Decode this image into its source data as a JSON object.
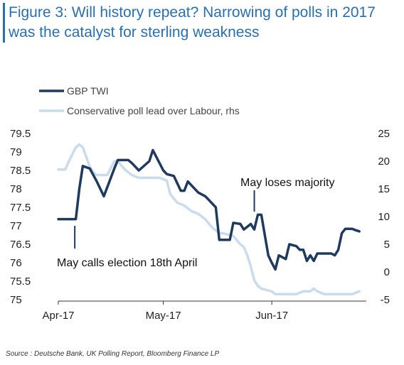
{
  "title_lines": [
    "Figure 3: Will history repeat? Narrowing of polls in 2017",
    "was the catalyst for sterling weakness"
  ],
  "source": "Source : Deutsche Bank, UK Polling Report, Bloomberg Finance LP",
  "colors": {
    "title": "#2a6fb0",
    "gbp": "#1f3a5f",
    "poll": "#c9dced",
    "annotation": "#111111"
  },
  "chart_data": {
    "type": "line",
    "legend_position": "top-left",
    "grid": false,
    "x_ticks": [
      "Apr-17",
      "May-17",
      "Jun-17"
    ],
    "x_domain_days": [
      0,
      88
    ],
    "x_tick_days": [
      0,
      30,
      61
    ],
    "y_left_ticks": [
      "79.5",
      "79",
      "78.5",
      "78",
      "77.5",
      "77",
      "76.5",
      "76",
      "75.5",
      "75"
    ],
    "y_right_ticks": [
      "25",
      "20",
      "15",
      "10",
      "5",
      "0",
      "-5"
    ],
    "ylim_left": [
      75,
      79.5
    ],
    "ylim_right": [
      -5,
      25
    ],
    "series": [
      {
        "name": "GBP TWI",
        "axis": "left",
        "x_days": [
          0,
          4,
          5,
          6,
          7,
          9,
          11,
          13,
          16,
          17,
          19,
          20,
          21,
          23,
          26,
          27,
          30,
          31,
          33,
          35,
          36,
          37,
          38,
          40,
          42,
          43,
          45,
          46,
          47,
          49,
          50,
          52,
          53,
          55,
          56,
          57,
          58,
          60,
          61,
          62,
          63,
          65,
          66,
          68,
          69,
          70,
          71,
          72,
          73,
          74,
          75,
          77,
          78,
          79,
          80,
          81,
          82,
          84,
          85,
          86
        ],
        "values": [
          77.18,
          77.18,
          77.18,
          78.0,
          78.62,
          78.55,
          78.2,
          77.8,
          78.55,
          78.78,
          78.78,
          78.78,
          78.7,
          78.5,
          78.75,
          79.05,
          78.5,
          78.4,
          78.35,
          77.95,
          77.95,
          78.2,
          78.1,
          77.9,
          77.8,
          77.7,
          77.5,
          76.62,
          76.62,
          76.62,
          77.08,
          77.05,
          76.9,
          77.05,
          76.9,
          77.3,
          77.3,
          76.2,
          76.0,
          75.82,
          76.2,
          76.1,
          76.5,
          76.45,
          76.35,
          76.35,
          76.05,
          76.2,
          76.05,
          76.25,
          76.25,
          76.25,
          76.25,
          76.2,
          76.35,
          76.8,
          76.92,
          76.92,
          76.88,
          76.85
        ],
        "color": "#1f3a5f"
      },
      {
        "name": "Conservative poll lead over Labour, rhs",
        "axis": "right",
        "x_days": [
          0,
          2,
          3,
          5,
          6,
          7,
          9,
          10,
          11,
          13,
          14,
          16,
          17,
          19,
          21,
          23,
          25,
          27,
          29,
          31,
          32,
          34,
          36,
          38,
          40,
          42,
          44,
          46,
          47,
          50,
          52,
          53,
          54,
          55,
          56,
          57,
          58,
          61,
          62,
          64,
          66,
          68,
          70,
          72,
          73,
          74,
          76,
          78,
          80,
          82,
          84,
          86
        ],
        "values": [
          18.5,
          18.5,
          20,
          22.5,
          23,
          22.5,
          19,
          18,
          17.5,
          17.5,
          17.5,
          20,
          20,
          18.5,
          17.5,
          17,
          17,
          17,
          17,
          16.5,
          14,
          12.5,
          12,
          11,
          10.5,
          9.5,
          8,
          7,
          7,
          6.5,
          5,
          4.5,
          3,
          1,
          -1.5,
          -2.5,
          -3,
          -3.5,
          -4,
          -4,
          -4,
          -4,
          -3.5,
          -3.5,
          -3,
          -3.5,
          -4,
          -4,
          -4,
          -4,
          -4,
          -3.5
        ],
        "color": "#c9dced"
      }
    ],
    "annotations": [
      {
        "text": "May calls election 18th April",
        "x_day": 4.7,
        "axis": "left",
        "y": 76.58
      },
      {
        "text": "May loses majority",
        "x_day": 56,
        "axis": "left",
        "y": 77.95
      }
    ]
  }
}
